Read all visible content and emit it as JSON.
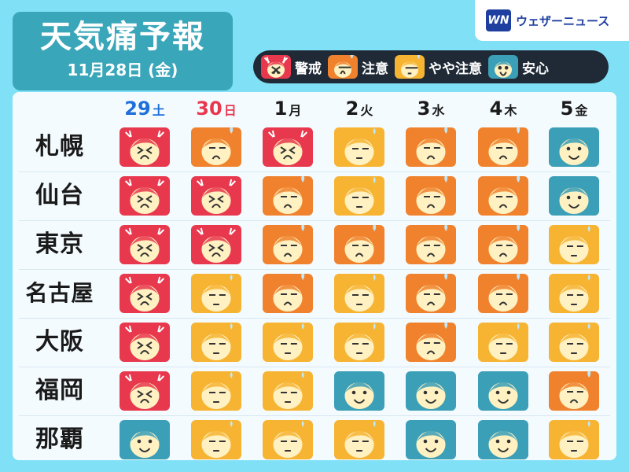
{
  "title": {
    "main": "天気痛予報",
    "date": "11月28日 (金)"
  },
  "brand": {
    "logo": "WN",
    "name": "ウェザーニュース"
  },
  "colors": {
    "警戒": "#e8384e",
    "注意": "#f0822d",
    "やや注意": "#f7b432",
    "安心": "#3a9fb7"
  },
  "legend": [
    {
      "level": "警戒",
      "label": "警戒",
      "icon": "pain-face-icon"
    },
    {
      "level": "注意",
      "label": "注意",
      "icon": "worried-face-icon"
    },
    {
      "level": "やや注意",
      "label": "やや注意",
      "icon": "neutral-face-icon"
    },
    {
      "level": "安心",
      "label": "安心",
      "icon": "smile-face-icon"
    }
  ],
  "days": [
    {
      "num": "29",
      "wd": "土",
      "color": "#1e6fd9"
    },
    {
      "num": "30",
      "wd": "日",
      "color": "#e8384e"
    },
    {
      "num": "1",
      "wd": "月",
      "color": "#1a1a1a"
    },
    {
      "num": "2",
      "wd": "火",
      "color": "#1a1a1a"
    },
    {
      "num": "3",
      "wd": "水",
      "color": "#1a1a1a"
    },
    {
      "num": "4",
      "wd": "木",
      "color": "#1a1a1a"
    },
    {
      "num": "5",
      "wd": "金",
      "color": "#1a1a1a"
    }
  ],
  "cities": [
    {
      "name": "札幌",
      "levels": [
        "警戒",
        "注意",
        "警戒",
        "やや注意",
        "注意",
        "注意",
        "安心"
      ]
    },
    {
      "name": "仙台",
      "levels": [
        "警戒",
        "警戒",
        "注意",
        "やや注意",
        "注意",
        "注意",
        "安心"
      ]
    },
    {
      "name": "東京",
      "levels": [
        "警戒",
        "警戒",
        "注意",
        "注意",
        "注意",
        "注意",
        "やや注意"
      ]
    },
    {
      "name": "名古屋",
      "levels": [
        "警戒",
        "やや注意",
        "注意",
        "やや注意",
        "注意",
        "注意",
        "やや注意"
      ]
    },
    {
      "name": "大阪",
      "levels": [
        "警戒",
        "やや注意",
        "やや注意",
        "やや注意",
        "注意",
        "やや注意",
        "やや注意"
      ]
    },
    {
      "name": "福岡",
      "levels": [
        "警戒",
        "やや注意",
        "やや注意",
        "安心",
        "安心",
        "安心",
        "注意"
      ]
    },
    {
      "name": "那覇",
      "levels": [
        "安心",
        "やや注意",
        "やや注意",
        "やや注意",
        "安心",
        "安心",
        "やや注意"
      ]
    }
  ]
}
